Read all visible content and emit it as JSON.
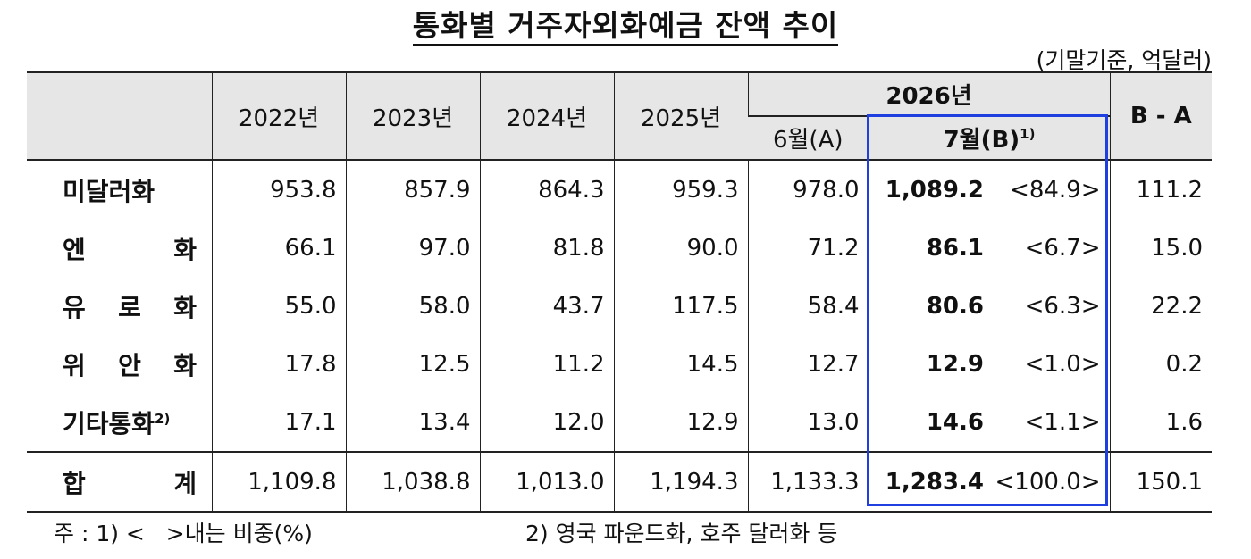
{
  "title": "통화별 거주자외화예금 잔액 추이",
  "unit": "(기말기준, 억달러)",
  "header": {
    "years": [
      "2022년",
      "2023년",
      "2024년",
      "2025년"
    ],
    "year_2026": "2026년",
    "june": "6월(A)",
    "july": "7월(B)",
    "july_note": "1)",
    "diff": "B - A"
  },
  "rows": [
    {
      "name": [
        "미달러화"
      ],
      "note": "",
      "values": [
        "953.8",
        "857.9",
        "864.3",
        "959.3",
        "978.0"
      ],
      "b": "1,089.2",
      "share": "<84.9>",
      "diff": "111.2"
    },
    {
      "name": [
        "엔",
        "화"
      ],
      "note": "",
      "values": [
        "66.1",
        "97.0",
        "81.8",
        "90.0",
        "71.2"
      ],
      "b": "86.1",
      "share": "<6.7>",
      "diff": "15.0"
    },
    {
      "name": [
        "유",
        "로",
        "화"
      ],
      "note": "",
      "values": [
        "55.0",
        "58.0",
        "43.7",
        "117.5",
        "58.4"
      ],
      "b": "80.6",
      "share": "<6.3>",
      "diff": "22.2"
    },
    {
      "name": [
        "위",
        "안",
        "화"
      ],
      "note": "",
      "values": [
        "17.8",
        "12.5",
        "11.2",
        "14.5",
        "12.7"
      ],
      "b": "12.9",
      "share": "<1.0>",
      "diff": "0.2"
    },
    {
      "name": [
        "기타통화"
      ],
      "note": "2)",
      "values": [
        "17.1",
        "13.4",
        "12.0",
        "12.9",
        "13.0"
      ],
      "b": "14.6",
      "share": "<1.1>",
      "diff": "1.6"
    }
  ],
  "total": {
    "name": [
      "합",
      "계"
    ],
    "values": [
      "1,109.8",
      "1,038.8",
      "1,013.0",
      "1,194.3",
      "1,133.3"
    ],
    "b": "1,283.4",
    "share": "<100.0>",
    "diff": "150.1"
  },
  "notes": {
    "note1": "주 : 1) <   >내는 비중(%)",
    "note2": "2) 영국 파운드화, 호주 달러화 등"
  },
  "colors": {
    "header_bg": "#e6e6e6",
    "highlight": "#1f3fe0"
  }
}
